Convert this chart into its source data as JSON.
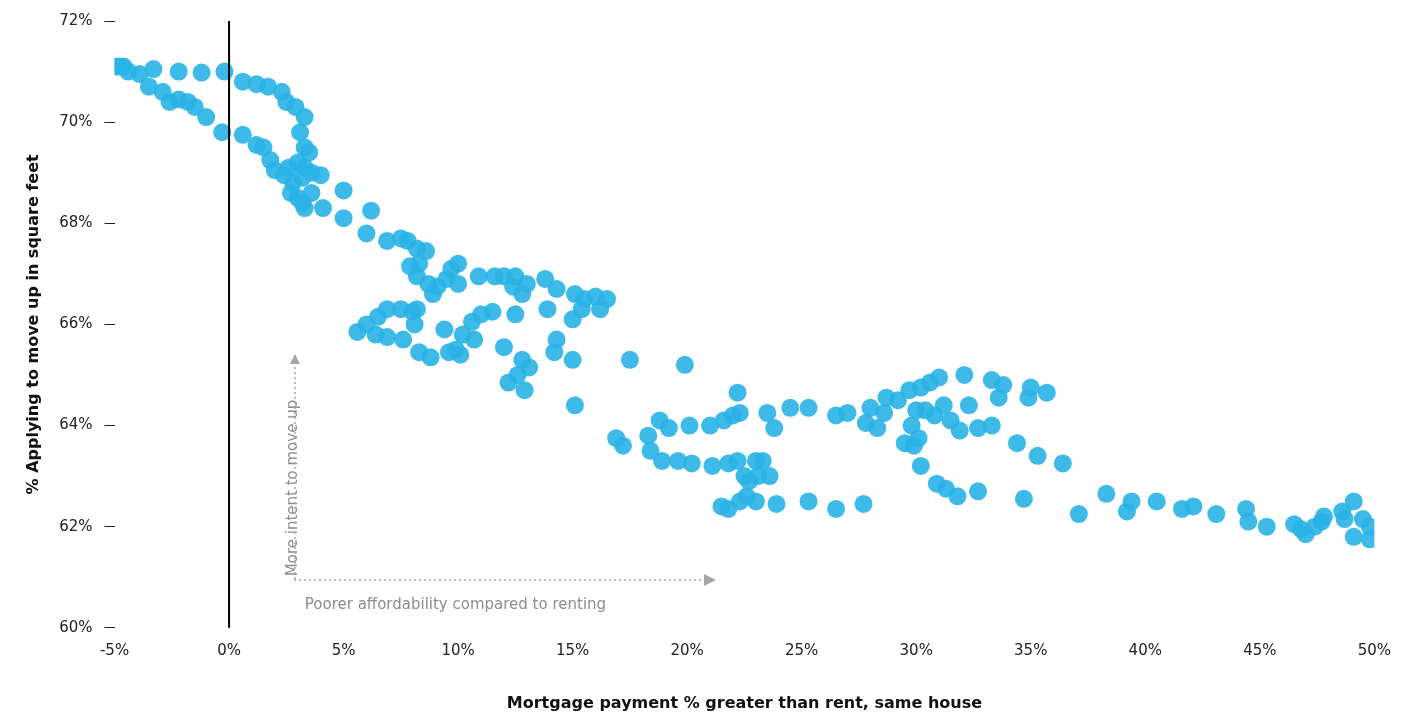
{
  "chart_data": {
    "type": "scatter",
    "xlabel": "Mortgage payment % greater than rent, same house",
    "ylabel": "% Applying to move up in square feet",
    "xlim": [
      -5,
      50
    ],
    "ylim": [
      60,
      72
    ],
    "xticks": [
      {
        "value": -5,
        "label": "-5%"
      },
      {
        "value": 0,
        "label": "0%"
      },
      {
        "value": 5,
        "label": "5%"
      },
      {
        "value": 10,
        "label": "10%"
      },
      {
        "value": 15,
        "label": "15%"
      },
      {
        "value": 20,
        "label": "20%"
      },
      {
        "value": 25,
        "label": "25%"
      },
      {
        "value": 30,
        "label": "30%"
      },
      {
        "value": 35,
        "label": "35%"
      },
      {
        "value": 40,
        "label": "40%"
      },
      {
        "value": 45,
        "label": "45%"
      },
      {
        "value": 50,
        "label": "50%"
      }
    ],
    "yticks": [
      {
        "value": 60,
        "label": "60%"
      },
      {
        "value": 62,
        "label": "62%"
      },
      {
        "value": 64,
        "label": "64%"
      },
      {
        "value": 66,
        "label": "66%"
      },
      {
        "value": 68,
        "label": "68%"
      },
      {
        "value": 70,
        "label": "70%"
      },
      {
        "value": 72,
        "label": "72%"
      }
    ],
    "grid": false,
    "legend": false,
    "marker": "circle",
    "ref_lines": [
      {
        "axis": "x",
        "value": 0,
        "color": "#000000"
      }
    ],
    "annotations": [
      "More intent to move up",
      "Poorer affordability compared to renting"
    ],
    "series": [
      {
        "color": "#29b2e7",
        "x": [
          -5,
          -4.8,
          -4.6,
          -4.4,
          -3.9,
          -3.3,
          -2.2,
          -1.2,
          -0.2,
          0.6,
          1.2,
          1.7,
          2.3,
          2.5,
          2.9,
          3.3,
          3.1,
          3.3,
          3.5,
          3.3,
          -3.5,
          -2.9,
          -2.6,
          -2.2,
          -1.8,
          -1.5,
          -1,
          -0.3,
          0.6,
          1.2,
          1.5,
          1.8,
          2,
          2.4,
          2.6,
          3,
          2.8,
          3.2,
          3.6,
          4,
          2.7,
          3,
          3.2,
          3.3,
          3.6,
          4.1,
          5,
          5,
          6.2,
          6,
          6.9,
          7.5,
          7.8,
          8.2,
          8.6,
          7.9,
          8.3,
          8.2,
          8.7,
          8.9,
          9.1,
          9.5,
          9.7,
          10,
          10,
          10.9,
          11.6,
          12,
          12.5,
          12.4,
          13,
          13.8,
          14.3,
          15.1,
          15.5,
          16,
          16.5,
          15.4,
          16.2,
          15,
          13.9,
          12.8,
          12.5,
          11.5,
          11,
          10.6,
          10.2,
          9.9,
          9.4,
          9.6,
          10.1,
          10.7,
          8.8,
          8.3,
          8.1,
          7.6,
          6.9,
          6.4,
          5.6,
          6,
          6.5,
          6.9,
          7.5,
          8,
          8.2,
          12,
          12.2,
          12.6,
          13.1,
          12.8,
          12.9,
          14.2,
          14.3,
          15,
          15.1,
          17.5,
          19.9,
          16.9,
          17.2,
          18.3,
          18.8,
          19.2,
          20.1,
          21,
          21.6,
          22,
          22.3,
          22.2,
          23.5,
          23.8,
          24.5,
          25.3,
          18.4,
          18.9,
          19.6,
          20.2,
          21.1,
          21.8,
          22.2,
          23,
          23.3,
          22.5,
          22.7,
          23.1,
          23.6,
          22.6,
          23,
          21.5,
          21.8,
          22.3,
          23.9,
          25.3,
          26.5,
          27.7,
          26.5,
          27,
          27.8,
          28,
          28.3,
          28.7,
          29.2,
          28.6,
          29.5,
          29.9,
          29.8,
          30.1,
          29.7,
          30.2,
          30.6,
          31,
          32.1,
          30.4,
          30.8,
          31.2,
          31.5,
          31.9,
          32.3,
          32.7,
          30,
          30.2,
          30.9,
          31.3,
          31.8,
          32.7,
          33.3,
          33.6,
          33.8,
          33.3,
          34.4,
          35.3,
          35,
          34.9,
          35.7,
          36.4,
          34.7,
          37.1,
          38.3,
          39.2,
          39.4,
          40.5,
          41.6,
          42.1,
          43.1,
          44.4,
          44.5,
          45.3,
          46.5,
          46.8,
          47,
          47.4,
          47.8,
          47.7,
          48.6,
          48.7,
          49.1,
          49.5,
          49.8,
          49.1,
          49.8
        ],
        "values": [
          71.1,
          71.1,
          71.1,
          71,
          70.95,
          71.05,
          71,
          70.98,
          71,
          70.8,
          70.75,
          70.7,
          70.6,
          70.4,
          70.3,
          70.1,
          69.8,
          69.5,
          69.4,
          69.1,
          70.7,
          70.6,
          70.4,
          70.45,
          70.4,
          70.3,
          70.1,
          69.8,
          69.75,
          69.55,
          69.5,
          69.25,
          69.05,
          68.95,
          69.1,
          69.2,
          68.8,
          68.9,
          69,
          68.95,
          68.6,
          68.5,
          68.4,
          68.3,
          68.6,
          68.3,
          68.65,
          68.1,
          68.25,
          67.8,
          67.65,
          67.7,
          67.65,
          67.5,
          67.45,
          67.15,
          67.2,
          66.95,
          66.8,
          66.6,
          66.75,
          66.9,
          67.1,
          67.2,
          66.8,
          66.95,
          66.95,
          66.95,
          66.95,
          66.75,
          66.8,
          66.9,
          66.7,
          66.6,
          66.5,
          66.55,
          66.5,
          66.3,
          66.3,
          66.1,
          66.3,
          66.6,
          66.2,
          66.25,
          66.2,
          66.05,
          65.8,
          65.5,
          65.9,
          65.45,
          65.4,
          65.7,
          65.35,
          65.45,
          66,
          65.7,
          65.75,
          65.8,
          65.85,
          66,
          66.15,
          66.3,
          66.3,
          66.25,
          66.3,
          65.55,
          64.85,
          65,
          65.15,
          65.3,
          64.7,
          65.45,
          65.7,
          65.3,
          64.4,
          65.3,
          65.2,
          63.75,
          63.6,
          63.8,
          64.1,
          63.95,
          64,
          64,
          64.1,
          64.2,
          64.25,
          64.65,
          64.25,
          63.95,
          64.35,
          64.35,
          63.5,
          63.3,
          63.3,
          63.25,
          63.2,
          63.25,
          63.3,
          63.3,
          63.3,
          63,
          62.9,
          63,
          63,
          62.6,
          62.5,
          62.4,
          62.35,
          62.5,
          62.45,
          62.5,
          62.35,
          62.45,
          64.2,
          64.25,
          64.05,
          64.35,
          63.95,
          64.55,
          64.5,
          64.25,
          63.65,
          63.6,
          64,
          63.75,
          64.7,
          64.75,
          64.85,
          64.95,
          65,
          64.3,
          64.2,
          64.4,
          64.1,
          63.9,
          64.4,
          63.95,
          64.3,
          63.2,
          62.85,
          62.75,
          62.6,
          62.7,
          64.9,
          64.55,
          64.8,
          64,
          63.65,
          63.4,
          64.75,
          64.55,
          64.65,
          63.25,
          62.55,
          62.25,
          62.65,
          62.3,
          62.5,
          62.5,
          62.35,
          62.4,
          62.25,
          62.35,
          62.1,
          62,
          62.05,
          61.95,
          61.85,
          62,
          62.2,
          62.1,
          62.3,
          62.15,
          62.5,
          62.15,
          62,
          61.8,
          61.75
        ]
      }
    ]
  }
}
